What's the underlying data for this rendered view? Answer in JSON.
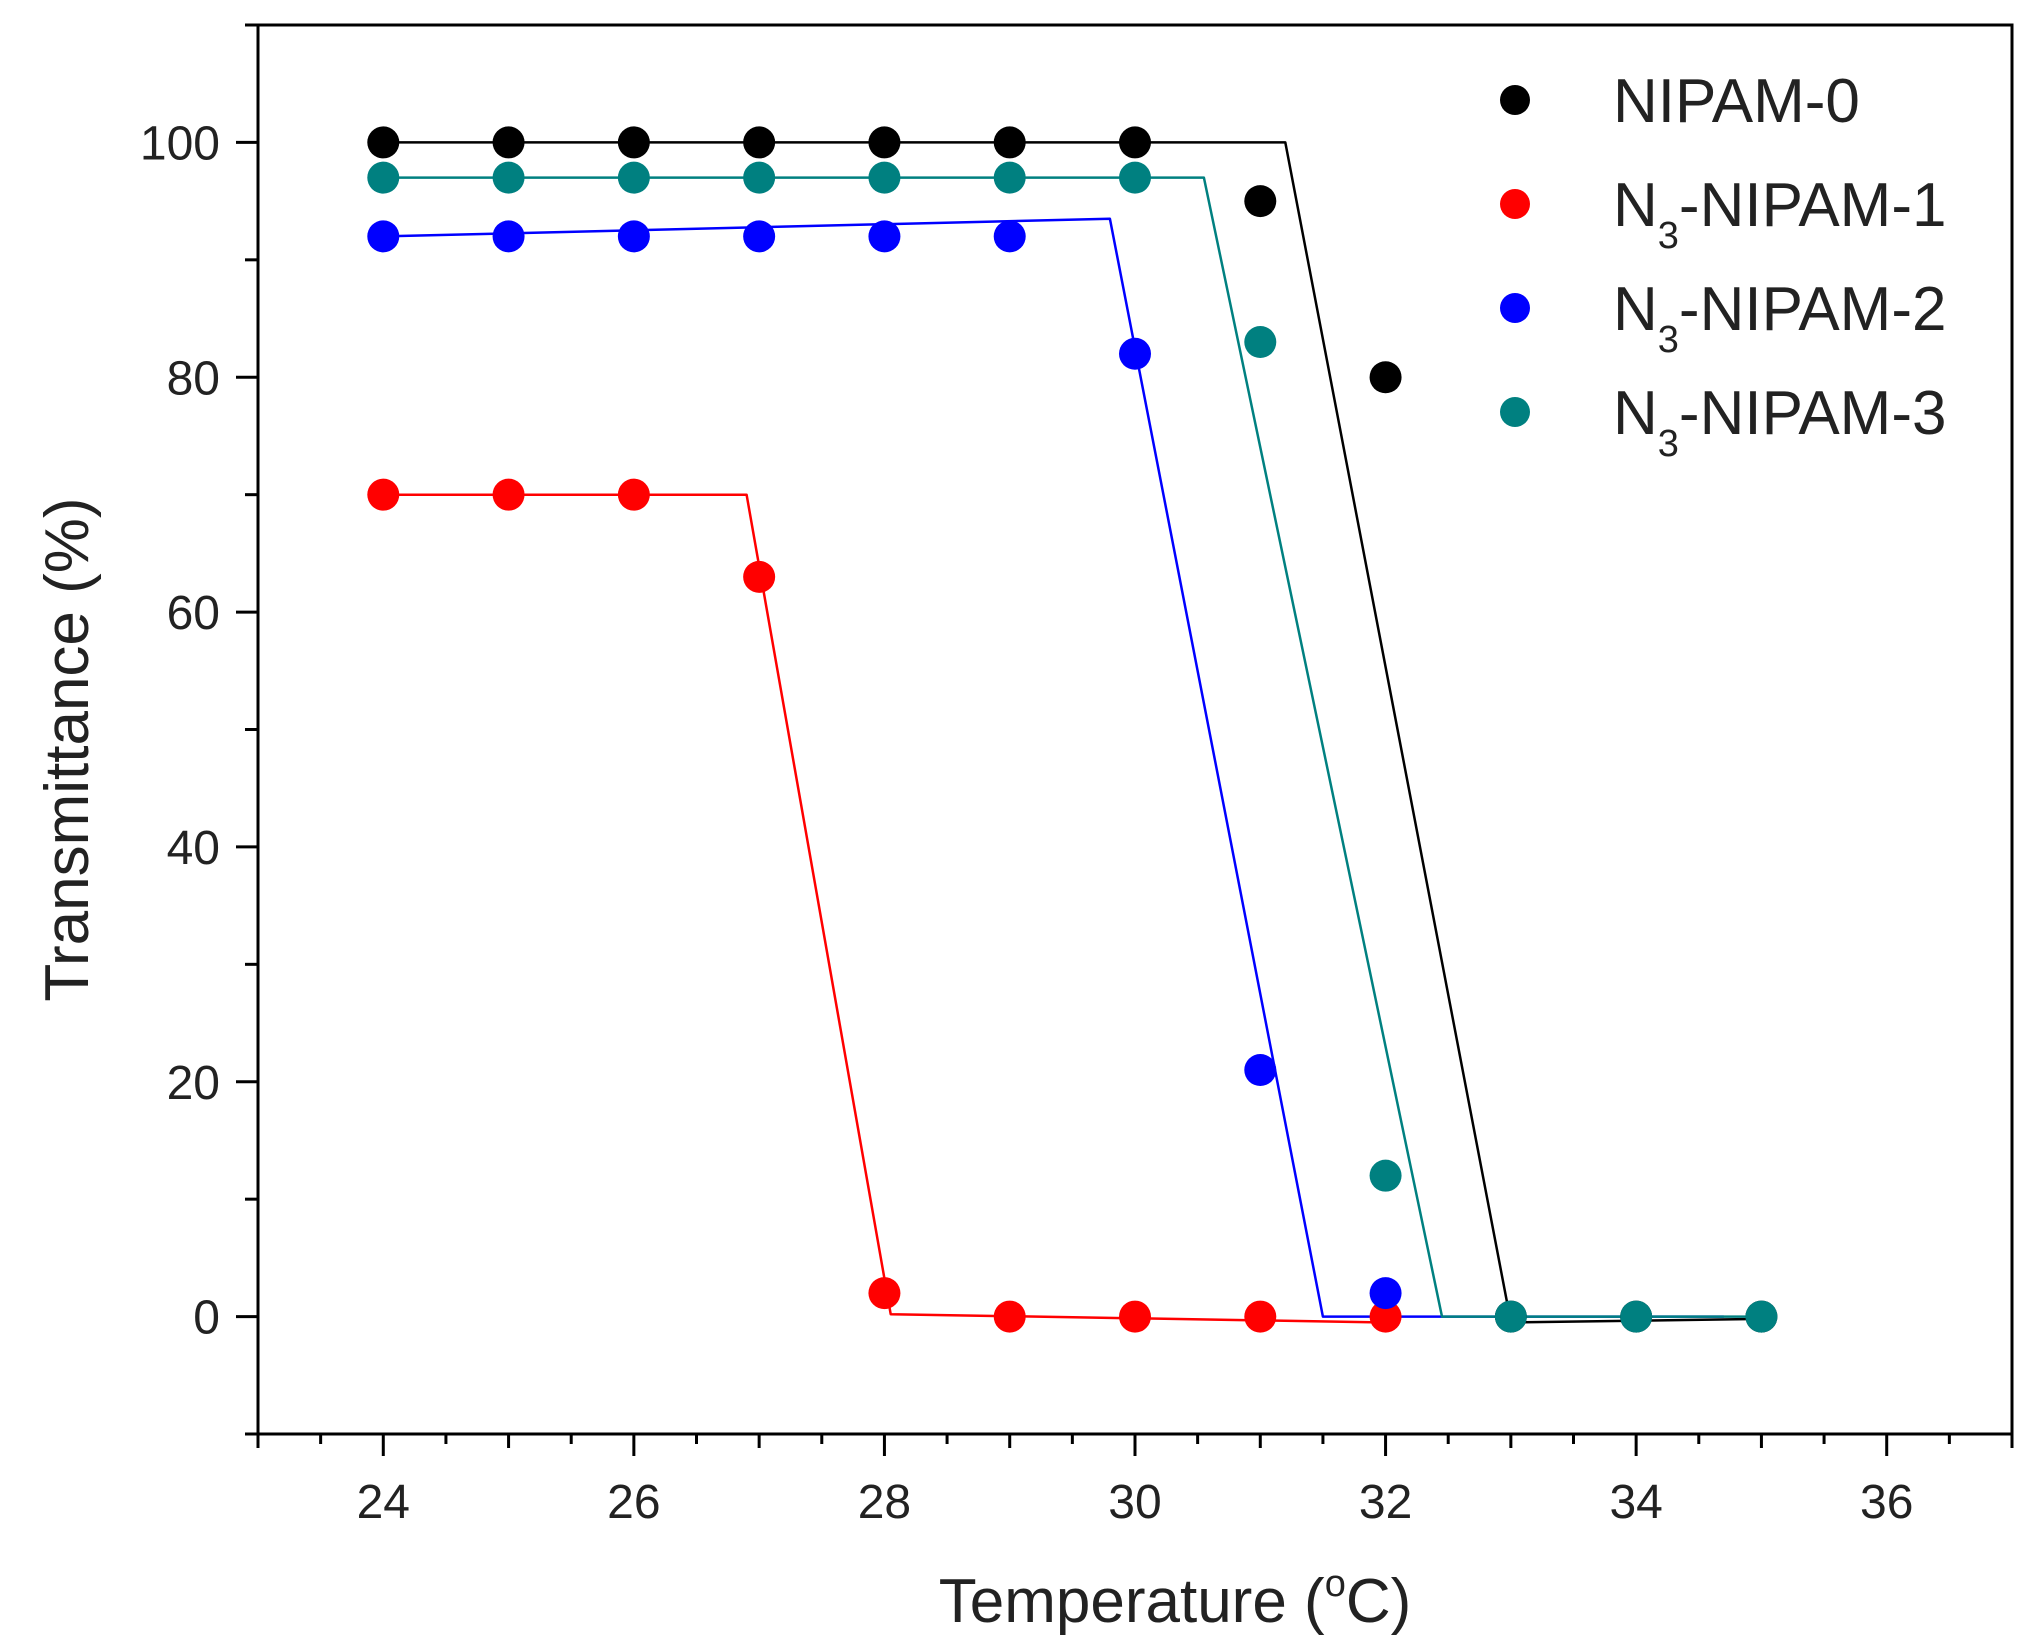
{
  "chart_data": {
    "type": "scatter",
    "xlabel": "Temperature (°C)",
    "xlabel_parts": {
      "before": "Temperature (",
      "degree": "o",
      "after": "C)"
    },
    "ylabel": "Transmittance (%)",
    "xlim": [
      23,
      37
    ],
    "ylim": [
      -10,
      110
    ],
    "xticks": [
      24,
      26,
      28,
      30,
      32,
      34,
      36
    ],
    "yticks": [
      0,
      20,
      40,
      60,
      80,
      100
    ],
    "grid": false,
    "legend_position": "top-right",
    "series": [
      {
        "name": "NIPAM-0",
        "label_main": "NIPAM-0",
        "label_sub": "",
        "label_rest": "",
        "color": "#000000",
        "points": [
          [
            24,
            100
          ],
          [
            25,
            100
          ],
          [
            26,
            100
          ],
          [
            27,
            100
          ],
          [
            28,
            100
          ],
          [
            29,
            100
          ],
          [
            30,
            100
          ],
          [
            31,
            95
          ],
          [
            32,
            80
          ],
          [
            33,
            0
          ],
          [
            34,
            0
          ],
          [
            35,
            0
          ]
        ],
        "fit": [
          [
            24,
            100
          ],
          [
            31.2,
            100
          ],
          [
            33,
            -0.5
          ],
          [
            35,
            -0.2
          ]
        ]
      },
      {
        "name": "N3-NIPAM-1",
        "label_main": "N",
        "label_sub": "3",
        "label_rest": "-NIPAM-1",
        "color": "#ff0000",
        "points": [
          [
            24,
            70
          ],
          [
            25,
            70
          ],
          [
            26,
            70
          ],
          [
            27,
            63
          ],
          [
            28,
            2
          ],
          [
            29,
            0
          ],
          [
            30,
            0
          ],
          [
            31,
            0
          ],
          [
            32,
            0
          ]
        ],
        "fit": [
          [
            24,
            70
          ],
          [
            26.9,
            70
          ],
          [
            28.05,
            0.2
          ],
          [
            32,
            -0.5
          ]
        ]
      },
      {
        "name": "N3-NIPAM-2",
        "label_main": "N",
        "label_sub": "3",
        "label_rest": "-NIPAM-2",
        "color": "#0000ff",
        "points": [
          [
            24,
            92
          ],
          [
            25,
            92
          ],
          [
            26,
            92
          ],
          [
            27,
            92
          ],
          [
            28,
            92
          ],
          [
            29,
            92
          ],
          [
            30,
            82
          ],
          [
            31,
            21
          ],
          [
            32,
            2
          ]
        ],
        "fit": [
          [
            24,
            92
          ],
          [
            29.8,
            93.5
          ],
          [
            31.5,
            0
          ],
          [
            34.7,
            0
          ]
        ]
      },
      {
        "name": "N3-NIPAM-3",
        "label_main": "N",
        "label_sub": "3",
        "label_rest": "-NIPAM-3",
        "color": "#008080",
        "points": [
          [
            24,
            97
          ],
          [
            25,
            97
          ],
          [
            26,
            97
          ],
          [
            27,
            97
          ],
          [
            28,
            97
          ],
          [
            29,
            97
          ],
          [
            30,
            97
          ],
          [
            31,
            83
          ],
          [
            32,
            12
          ],
          [
            33,
            0
          ],
          [
            34,
            0
          ],
          [
            35,
            0
          ]
        ],
        "fit": [
          [
            24,
            97
          ],
          [
            30.55,
            97
          ],
          [
            32.45,
            0
          ],
          [
            35,
            0
          ]
        ]
      }
    ]
  }
}
